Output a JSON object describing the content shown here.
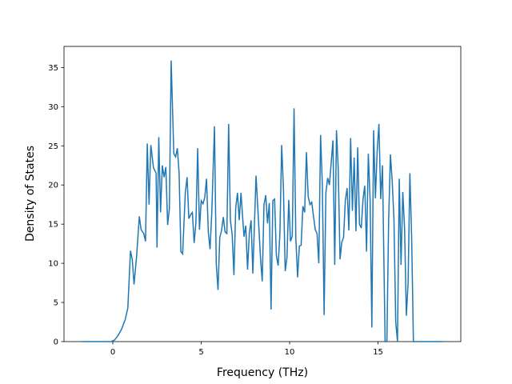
{
  "chart_data": {
    "type": "line",
    "xlabel": "Frequency (THz)",
    "ylabel": "Density of States",
    "xlim": [
      -2.76,
      19.68
    ],
    "ylim": [
      0,
      37.7
    ],
    "xticks": [
      0,
      5,
      10,
      15
    ],
    "yticks": [
      0,
      5,
      10,
      15,
      20,
      25,
      30,
      35
    ],
    "color": "#1f77b4",
    "x": [
      -1.75,
      -0.1,
      0.1,
      0.3,
      0.5,
      0.7,
      0.85,
      1.0,
      1.1,
      1.2,
      1.35,
      1.5,
      1.6,
      1.75,
      1.85,
      1.95,
      2.05,
      2.15,
      2.3,
      2.45,
      2.5,
      2.6,
      2.7,
      2.8,
      2.9,
      3.0,
      3.1,
      3.2,
      3.3,
      3.45,
      3.55,
      3.65,
      3.75,
      3.85,
      3.95,
      4.1,
      4.2,
      4.3,
      4.4,
      4.5,
      4.6,
      4.7,
      4.8,
      4.9,
      5.0,
      5.1,
      5.2,
      5.3,
      5.4,
      5.5,
      5.6,
      5.75,
      5.85,
      5.95,
      6.05,
      6.15,
      6.25,
      6.35,
      6.45,
      6.55,
      6.65,
      6.75,
      6.85,
      6.95,
      7.05,
      7.15,
      7.25,
      7.35,
      7.42,
      7.52,
      7.62,
      7.72,
      7.82,
      7.92,
      8.1,
      8.25,
      8.35,
      8.45,
      8.55,
      8.65,
      8.75,
      8.85,
      8.95,
      9.05,
      9.15,
      9.25,
      9.35,
      9.45,
      9.55,
      9.65,
      9.75,
      9.85,
      9.95,
      10.05,
      10.15,
      10.25,
      10.35,
      10.45,
      10.55,
      10.65,
      10.75,
      10.85,
      10.95,
      11.05,
      11.15,
      11.25,
      11.35,
      11.45,
      11.55,
      11.65,
      11.75,
      11.85,
      11.95,
      12.05,
      12.15,
      12.25,
      12.45,
      12.55,
      12.65,
      12.75,
      12.85,
      12.95,
      13.05,
      13.15,
      13.25,
      13.35,
      13.45,
      13.55,
      13.65,
      13.75,
      13.85,
      13.95,
      14.05,
      14.15,
      14.25,
      14.35,
      14.45,
      14.55,
      14.65,
      14.75,
      14.85,
      14.95,
      15.05,
      15.15,
      15.25,
      15.4,
      15.5,
      15.6,
      15.7,
      15.8,
      15.9,
      16.0,
      16.1,
      16.2,
      16.3,
      16.4,
      16.5,
      16.6,
      16.7,
      16.8,
      16.9,
      17.0,
      18.65
    ],
    "values": [
      0,
      0,
      0.2,
      0.8,
      1.6,
      2.8,
      4.3,
      11.6,
      10.5,
      7.3,
      11,
      16,
      14.3,
      13.8,
      12.8,
      25.3,
      17.5,
      25.1,
      22.2,
      21.5,
      12,
      26.1,
      16.5,
      22.5,
      21,
      22.3,
      14.9,
      17,
      35.9,
      24,
      23.6,
      24.7,
      21.5,
      11.5,
      11.2,
      19,
      21,
      15.7,
      16.2,
      16.5,
      12.6,
      15.2,
      24.7,
      14.3,
      18,
      17.6,
      18.4,
      20.8,
      14,
      11.8,
      16.6,
      27.5,
      10,
      6.6,
      13.3,
      14.2,
      15.9,
      14,
      13.8,
      27.8,
      15.5,
      13.7,
      8.5,
      17,
      19,
      15.5,
      19,
      15.6,
      13.4,
      14.8,
      9.2,
      13.8,
      15.5,
      8.7,
      21.2,
      15,
      10.8,
      7.7,
      17.5,
      18.7,
      15.1,
      17.7,
      4.1,
      18,
      18.2,
      11,
      9.7,
      13.8,
      25.1,
      19.5,
      9,
      10.8,
      18.1,
      12.8,
      13.5,
      29.8,
      13.3,
      8.2,
      12.2,
      12.3,
      17.3,
      16.5,
      24.2,
      18.5,
      17.5,
      17.8,
      16,
      14.3,
      13.8,
      10,
      26.4,
      20,
      3.4,
      19,
      20.9,
      20,
      25.7,
      9.8,
      27,
      22,
      10.5,
      12.7,
      13.3,
      18,
      19.6,
      14.2,
      26,
      16.7,
      23.5,
      14.1,
      24.8,
      15,
      14.5,
      18.2,
      19.9,
      11.5,
      24,
      18.2,
      1.8,
      27,
      18.3,
      24.3,
      27.8,
      18.2,
      22.5,
      0,
      0,
      15.5,
      23.9,
      20.5,
      15.6,
      2.5,
      0,
      20.8,
      9.8,
      19.1,
      14.5,
      3.3,
      7.5,
      21.5,
      13.3,
      0,
      0
    ]
  }
}
